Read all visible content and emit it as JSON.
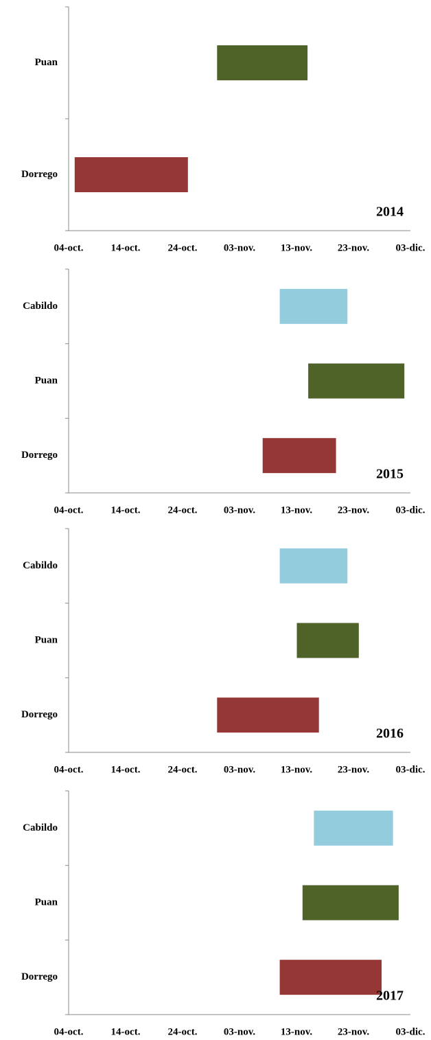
{
  "chart_data": [
    {
      "type": "range-bar",
      "annotation": "2014",
      "categories": [
        "Dorrego",
        "Puan"
      ],
      "starts": [
        1,
        26
      ],
      "ends": [
        21,
        42
      ],
      "colors": [
        "#953735",
        "#4f6228"
      ],
      "xlim": [
        0,
        60
      ],
      "xticks": [
        {
          "value": 0,
          "label": "04-oct."
        },
        {
          "value": 10,
          "label": "14-oct."
        },
        {
          "value": 20,
          "label": "24-oct."
        },
        {
          "value": 30,
          "label": "03-nov."
        },
        {
          "value": 40,
          "label": "13-nov."
        },
        {
          "value": 50,
          "label": "23-nov."
        },
        {
          "value": 60,
          "label": "03-dic."
        }
      ]
    },
    {
      "type": "range-bar",
      "annotation": "2015",
      "categories": [
        "Dorrego",
        "Puan",
        "Cabildo"
      ],
      "starts": [
        34,
        42,
        37
      ],
      "ends": [
        47,
        59,
        49
      ],
      "colors": [
        "#953735",
        "#4f6228",
        "#93cddd"
      ],
      "xlim": [
        0,
        60
      ],
      "xticks": [
        {
          "value": 0,
          "label": "04-oct."
        },
        {
          "value": 10,
          "label": "14-oct."
        },
        {
          "value": 20,
          "label": "24-oct."
        },
        {
          "value": 30,
          "label": "03-nov."
        },
        {
          "value": 40,
          "label": "13-nov."
        },
        {
          "value": 50,
          "label": "23-nov."
        },
        {
          "value": 60,
          "label": "03-dic."
        }
      ]
    },
    {
      "type": "range-bar",
      "annotation": "2016",
      "categories": [
        "Dorrego",
        "Puan",
        "Cabildo"
      ],
      "starts": [
        26,
        40,
        37
      ],
      "ends": [
        44,
        51,
        49
      ],
      "colors": [
        "#953735",
        "#4f6228",
        "#93cddd"
      ],
      "xlim": [
        0,
        60
      ],
      "xticks": [
        {
          "value": 0,
          "label": "04-oct."
        },
        {
          "value": 10,
          "label": "14-oct."
        },
        {
          "value": 20,
          "label": "24-oct."
        },
        {
          "value": 30,
          "label": "03-nov."
        },
        {
          "value": 40,
          "label": "13-nov."
        },
        {
          "value": 50,
          "label": "23-nov."
        },
        {
          "value": 60,
          "label": "03-dic."
        }
      ]
    },
    {
      "type": "range-bar",
      "annotation": "2017",
      "categories": [
        "Dorrego",
        "Puan",
        "Cabildo"
      ],
      "starts": [
        37,
        41,
        43
      ],
      "ends": [
        55,
        58,
        57
      ],
      "colors": [
        "#953735",
        "#4f6228",
        "#93cddd"
      ],
      "xlim": [
        0,
        60
      ],
      "xticks": [
        {
          "value": 0,
          "label": "04-oct."
        },
        {
          "value": 10,
          "label": "14-oct."
        },
        {
          "value": 20,
          "label": "24-oct."
        },
        {
          "value": 30,
          "label": "03-nov."
        },
        {
          "value": 40,
          "label": "13-nov."
        },
        {
          "value": 50,
          "label": "23-nov."
        },
        {
          "value": 60,
          "label": "03-dic."
        }
      ]
    }
  ]
}
